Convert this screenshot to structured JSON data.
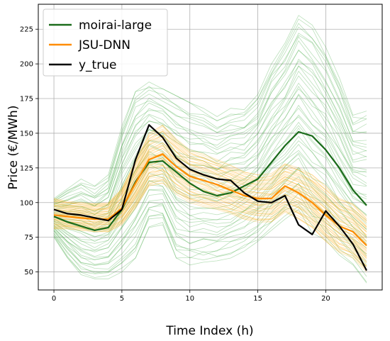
{
  "chart_data": {
    "type": "line",
    "xlabel": "Time Index (h)",
    "ylabel": "Price (€/MWh)",
    "xlim": [
      -1.15,
      24.15
    ],
    "ylim": [
      37,
      243
    ],
    "x_ticks": [
      0,
      5,
      10,
      15,
      20
    ],
    "y_ticks": [
      50,
      75,
      100,
      125,
      150,
      175,
      200,
      225
    ],
    "grid": true,
    "legend_position": "top-left",
    "x": [
      0,
      1,
      2,
      3,
      4,
      5,
      6,
      7,
      8,
      9,
      10,
      11,
      12,
      13,
      14,
      15,
      16,
      17,
      18,
      19,
      20,
      21,
      22,
      23
    ],
    "series": [
      {
        "name": "moirai-large",
        "color": "#1a6b1a",
        "values": [
          90,
          86,
          83,
          80,
          82,
          95,
          115,
          129,
          130,
          122,
          114,
          108,
          105,
          107,
          112,
          117,
          129,
          141,
          151,
          148,
          138,
          125,
          109,
          98
        ]
      },
      {
        "name": "JSU-DNN",
        "color": "#ff8c00",
        "values": [
          91,
          90,
          89,
          88,
          88,
          96,
          114,
          131,
          135,
          126,
          119,
          116,
          113,
          109,
          105,
          103,
          103,
          112,
          107,
          100,
          91,
          83,
          79,
          69
        ]
      },
      {
        "name": "y_true",
        "color": "#000000",
        "values": [
          95,
          92,
          91,
          89,
          87,
          95,
          131,
          156,
          147,
          132,
          124,
          120,
          117,
          116,
          107,
          101,
          100,
          105,
          84,
          77,
          94,
          83,
          70,
          51
        ]
      }
    ],
    "bands": [
      {
        "name": "moirai-large samples",
        "color": "#2ca02c",
        "upper": [
          103,
          110,
          117,
          112,
          120,
          155,
          180,
          187,
          182,
          177,
          172,
          168,
          162,
          168,
          167,
          178,
          200,
          215,
          235,
          228,
          212,
          190,
          163,
          166
        ],
        "lower": [
          75,
          60,
          48,
          45,
          45,
          50,
          60,
          82,
          84,
          60,
          55,
          57,
          58,
          60,
          65,
          72,
          80,
          88,
          95,
          78,
          73,
          62,
          55,
          42
        ]
      },
      {
        "name": "JSU-DNN samples",
        "color": "#ffa500",
        "upper": [
          103,
          101,
          100,
          99,
          100,
          110,
          130,
          150,
          156,
          146,
          138,
          135,
          131,
          127,
          122,
          120,
          121,
          128,
          125,
          120,
          112,
          103,
          99,
          90
        ],
        "lower": [
          81,
          81,
          80,
          79,
          79,
          84,
          96,
          112,
          114,
          106,
          100,
          97,
          95,
          92,
          88,
          86,
          86,
          93,
          88,
          82,
          72,
          64,
          60,
          50
        ]
      }
    ]
  }
}
